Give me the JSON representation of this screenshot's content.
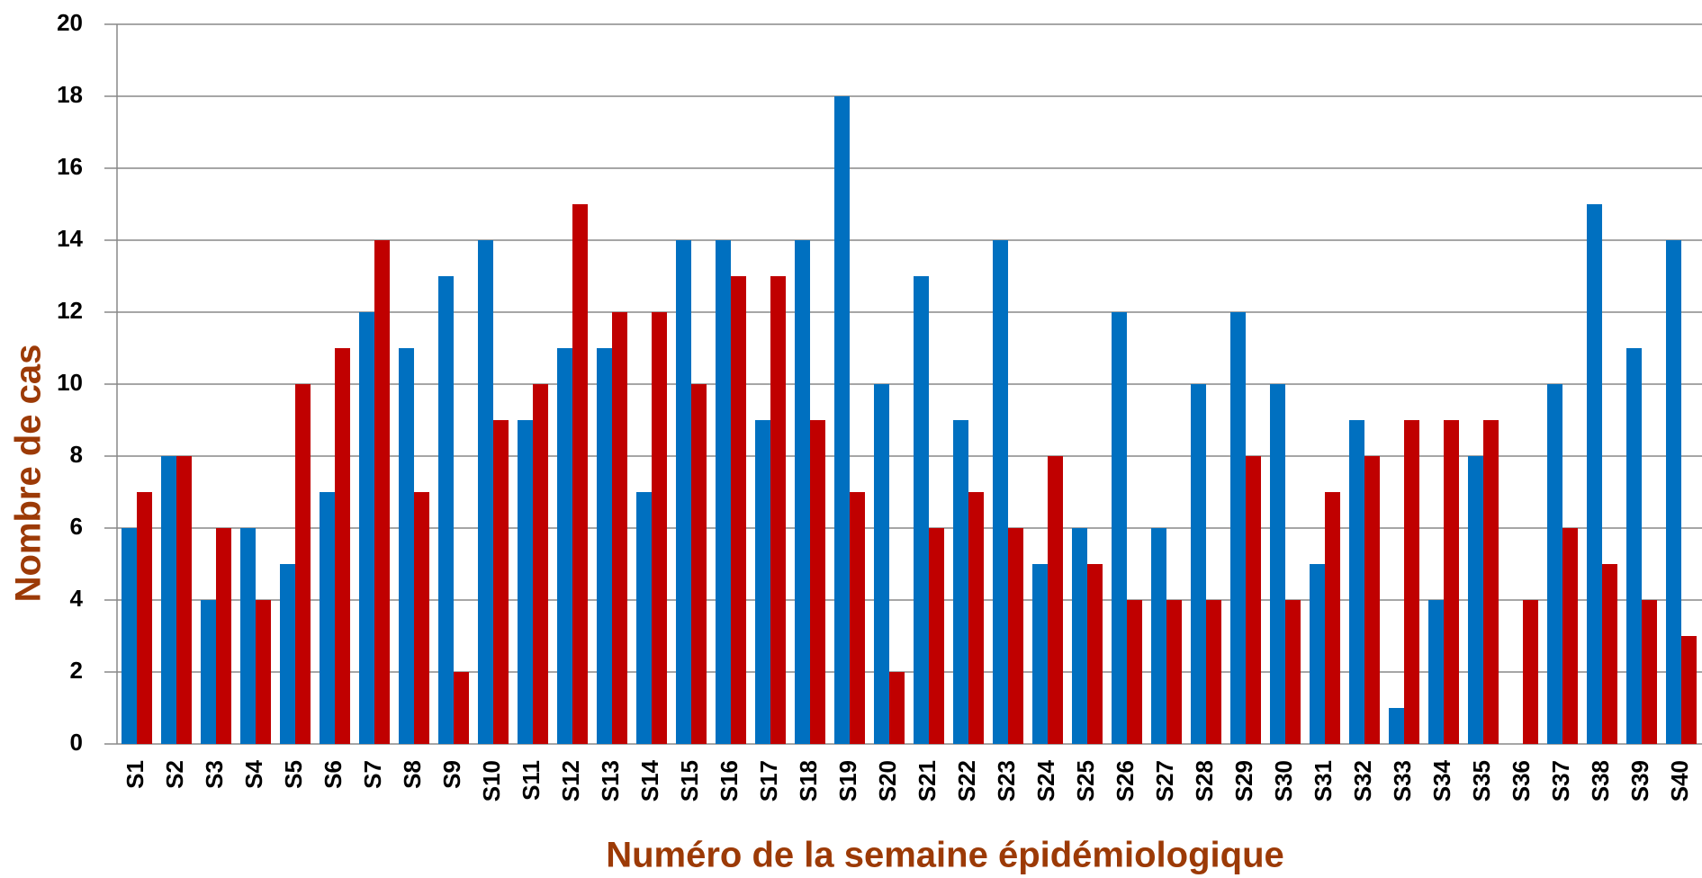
{
  "chart_data": {
    "type": "bar",
    "x_label": "Numéro de la semaine épidémiologique",
    "y_label": "Nombre de cas",
    "categories": [
      "S1",
      "S2",
      "S3",
      "S4",
      "S5",
      "S6",
      "S7",
      "S8",
      "S9",
      "S10",
      "S11",
      "S12",
      "S13",
      "S14",
      "S15",
      "S16",
      "S17",
      "S18",
      "S19",
      "S20",
      "S21",
      "S22",
      "S23",
      "S24",
      "S25",
      "S26",
      "S27",
      "S28",
      "S29",
      "S30",
      "S31",
      "S32",
      "S33",
      "S34",
      "S35",
      "S36",
      "S37",
      "S38",
      "S39",
      "S40"
    ],
    "series": [
      {
        "color": "#0070c0",
        "values": [
          6,
          8,
          4,
          6,
          5,
          7,
          12,
          11,
          13,
          14,
          9,
          11,
          11,
          7,
          14,
          14,
          9,
          14,
          18,
          10,
          13,
          9,
          14,
          5,
          6,
          12,
          6,
          10,
          12,
          10,
          5,
          9,
          1,
          4,
          8,
          0,
          10,
          15,
          11,
          14
        ]
      },
      {
        "color": "#c00000",
        "values": [
          7,
          8,
          6,
          4,
          10,
          11,
          14,
          7,
          2,
          9,
          10,
          15,
          12,
          12,
          10,
          13,
          13,
          9,
          7,
          2,
          6,
          7,
          6,
          8,
          5,
          4,
          4,
          4,
          8,
          4,
          7,
          8,
          9,
          9,
          9,
          4,
          6,
          5,
          4,
          3
        ]
      }
    ],
    "ylim": [
      0,
      20
    ],
    "yticks": [
      0,
      2,
      4,
      6,
      8,
      10,
      12,
      14,
      16,
      18,
      20
    ],
    "grid": true
  }
}
